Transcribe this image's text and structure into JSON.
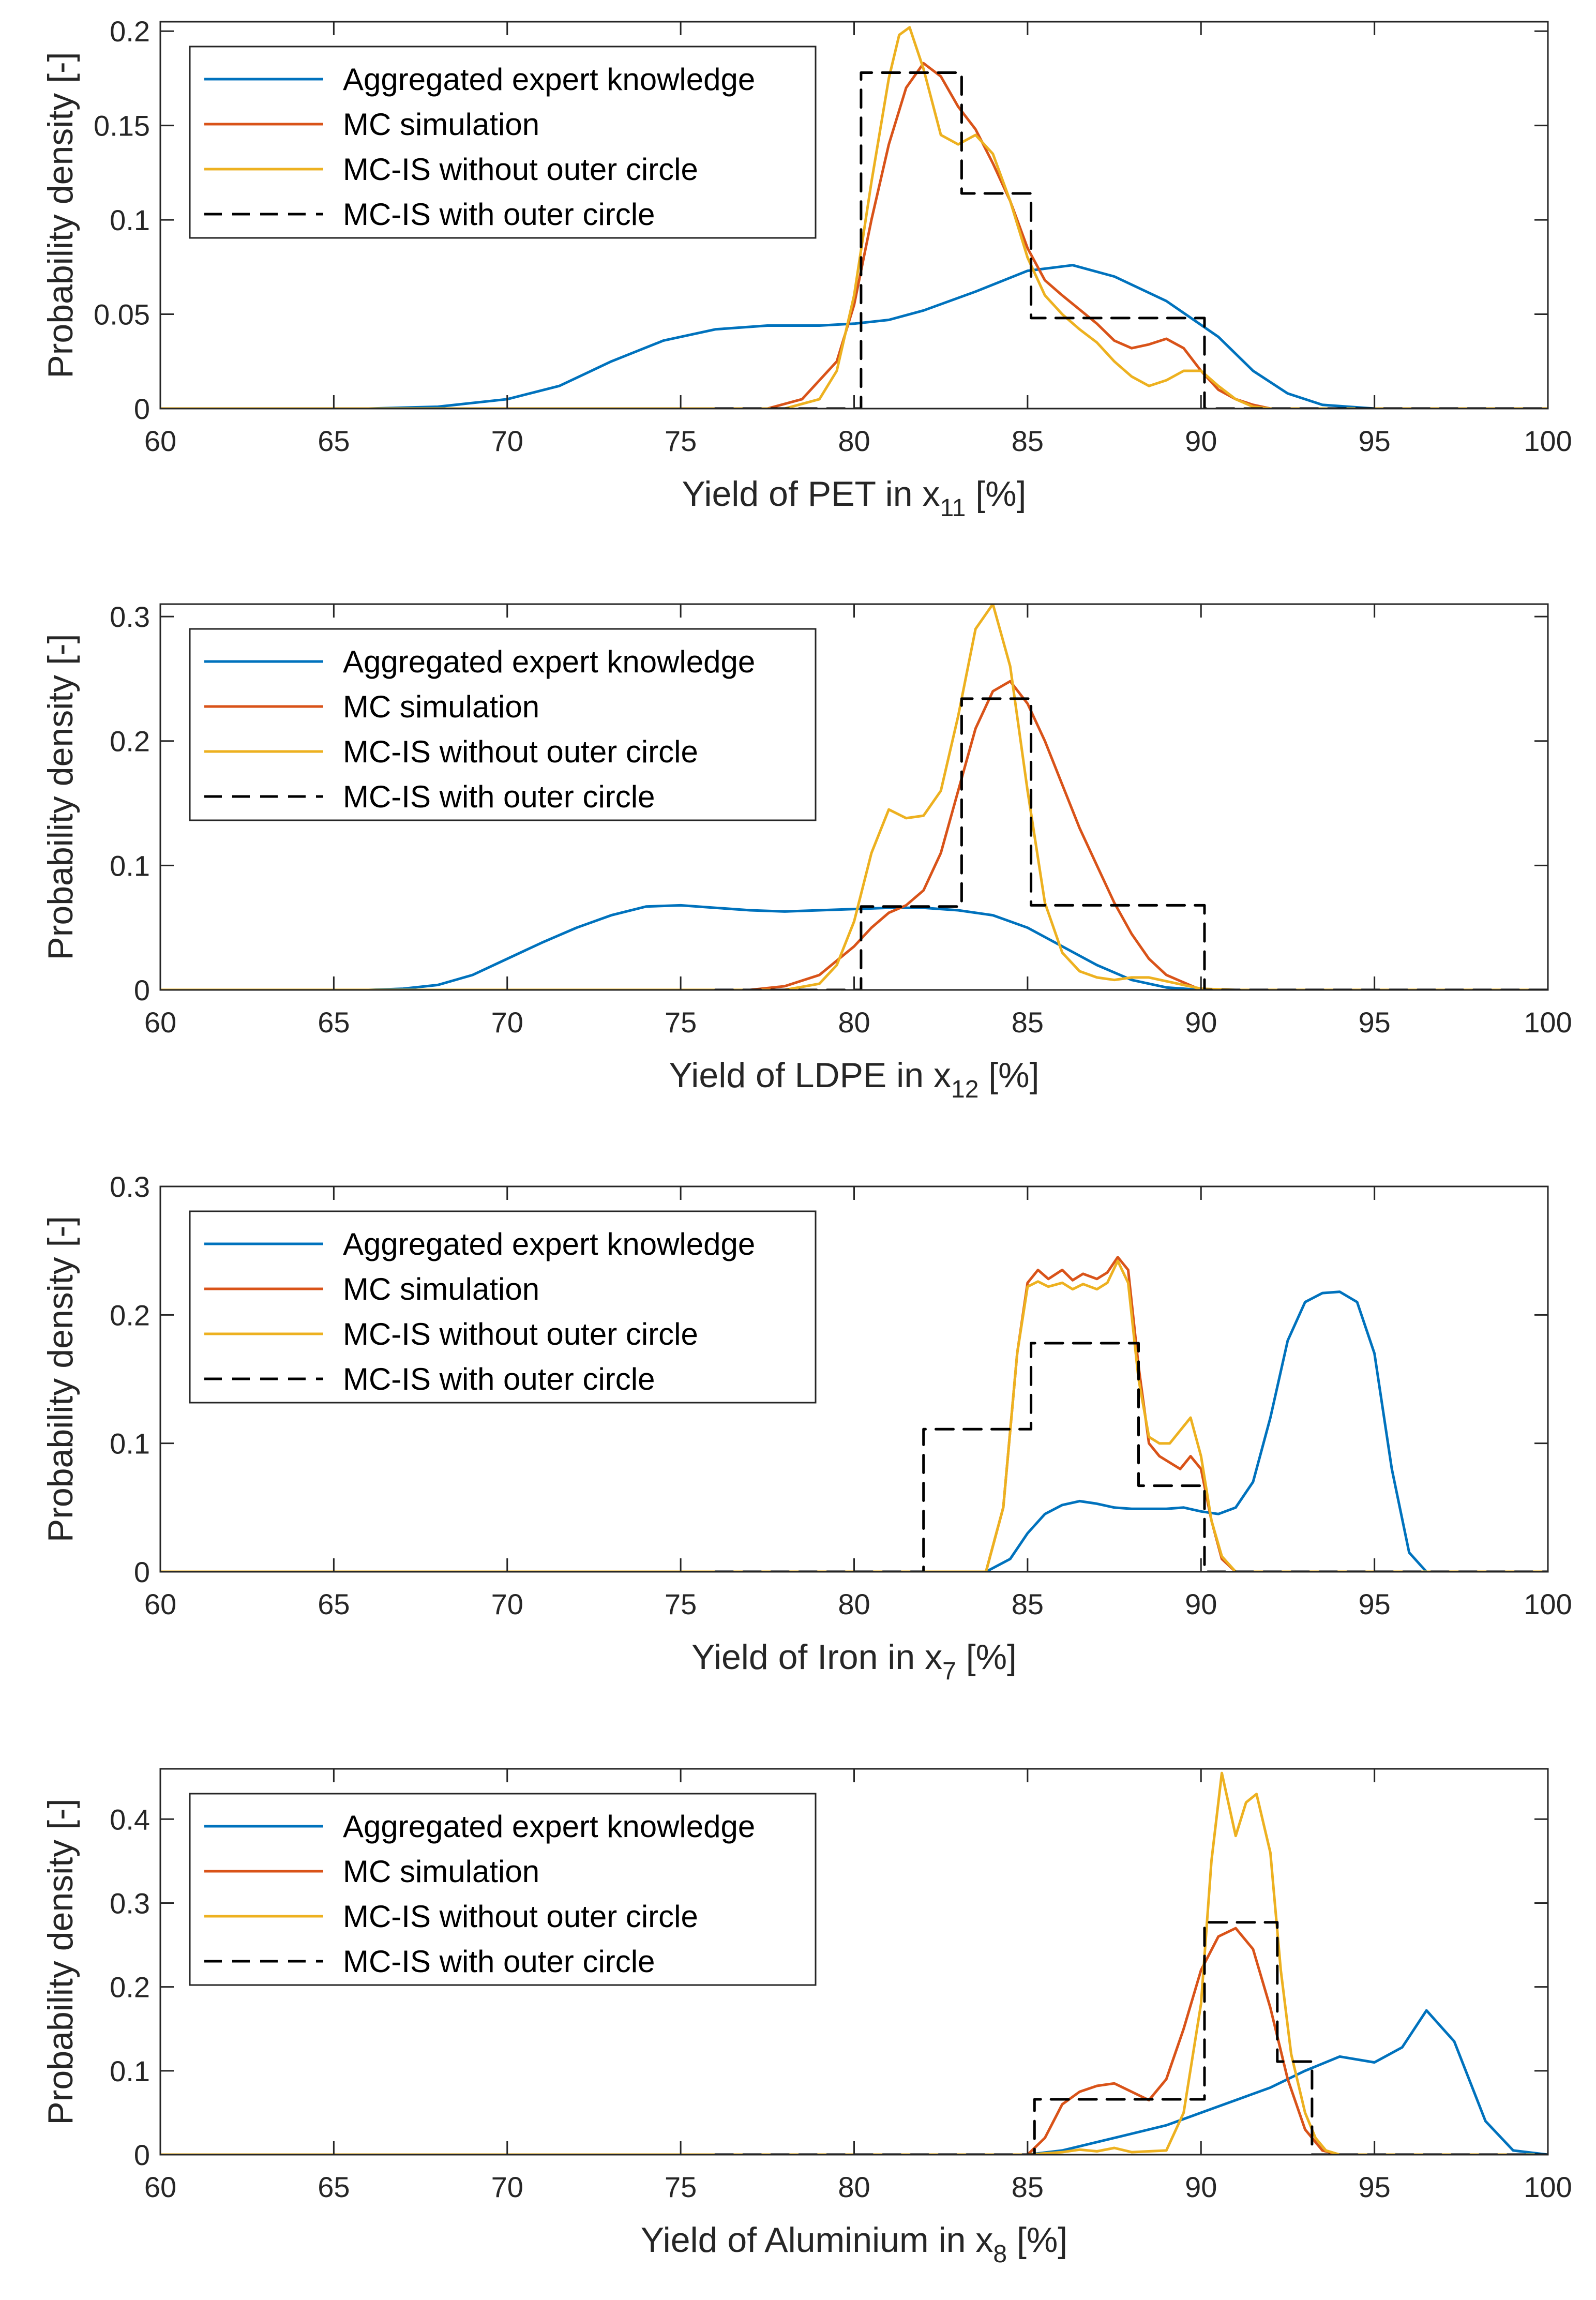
{
  "legend_entries": [
    {
      "name": "Aggregated expert knowledge",
      "color": "#0072BD",
      "dash": "solid"
    },
    {
      "name": "MC simulation",
      "color": "#D95319",
      "dash": "solid"
    },
    {
      "name": "MC-IS without outer circle",
      "color": "#EDB120",
      "dash": "solid"
    },
    {
      "name": "MC-IS with outer circle",
      "color": "#000000",
      "dash": "dashed"
    }
  ],
  "chart_data": [
    {
      "type": "line",
      "ylabel": "Probability density [-]",
      "xlabel_main": "Yield of PET in x",
      "xlabel_sub": "11",
      "xlabel_tail": " [%]",
      "xlim": [
        60,
        100
      ],
      "ylim": [
        0,
        0.205
      ],
      "xticks": [
        60,
        65,
        70,
        75,
        80,
        85,
        90,
        95,
        100
      ],
      "xtick_labels": [
        "60",
        "65",
        "70",
        "75",
        "80",
        "85",
        "90",
        "95",
        "100"
      ],
      "yticks": [
        0,
        0.05,
        0.1,
        0.15,
        0.2
      ],
      "ytick_labels": [
        "0",
        "0.05",
        "0.1",
        "0.15",
        "0.2"
      ],
      "series": [
        {
          "name": "Aggregated expert knowledge",
          "x": [
            60,
            66,
            68,
            70,
            71.5,
            73,
            74.5,
            76,
            77.5,
            79,
            80,
            81,
            82,
            83.5,
            85,
            86.3,
            87.5,
            89,
            90.5,
            91.5,
            92.5,
            93.5,
            95,
            100
          ],
          "y": [
            0,
            0,
            0.001,
            0.005,
            0.012,
            0.025,
            0.036,
            0.042,
            0.044,
            0.044,
            0.045,
            0.047,
            0.052,
            0.062,
            0.073,
            0.076,
            0.07,
            0.057,
            0.038,
            0.02,
            0.008,
            0.002,
            0,
            0
          ]
        },
        {
          "name": "MC simulation",
          "x": [
            60,
            77.5,
            78.5,
            79.5,
            80,
            80.5,
            81,
            81.5,
            82,
            82.5,
            83,
            83.5,
            84,
            84.5,
            85,
            85.5,
            86,
            87,
            87.5,
            88,
            88.5,
            89,
            89.5,
            90,
            90.5,
            91,
            91.5,
            92,
            93,
            100
          ],
          "y": [
            0,
            0,
            0.005,
            0.025,
            0.055,
            0.1,
            0.14,
            0.17,
            0.183,
            0.176,
            0.16,
            0.148,
            0.13,
            0.11,
            0.085,
            0.068,
            0.06,
            0.045,
            0.036,
            0.032,
            0.034,
            0.037,
            0.032,
            0.02,
            0.01,
            0.005,
            0.002,
            0,
            0,
            0
          ]
        },
        {
          "name": "MC-IS without outer circle",
          "x": [
            60,
            78,
            79,
            79.5,
            80,
            80.5,
            81,
            81.3,
            81.6,
            82,
            82.5,
            83,
            83.5,
            84,
            84.5,
            85,
            85.5,
            86,
            86.5,
            87,
            87.5,
            88,
            88.5,
            89,
            89.5,
            90,
            90.5,
            91,
            91.5,
            92,
            100
          ],
          "y": [
            0,
            0,
            0.005,
            0.02,
            0.06,
            0.12,
            0.175,
            0.198,
            0.202,
            0.18,
            0.145,
            0.14,
            0.145,
            0.135,
            0.11,
            0.08,
            0.06,
            0.05,
            0.042,
            0.035,
            0.025,
            0.017,
            0.012,
            0.015,
            0.02,
            0.02,
            0.012,
            0.005,
            0.001,
            0,
            0
          ]
        },
        {
          "name": "MC-IS with outer circle",
          "x": [
            76,
            80.2,
            80.2,
            83.1,
            83.1,
            85.1,
            85.1,
            90.1,
            90.1,
            100
          ],
          "y": [
            0,
            0,
            0.178,
            0.178,
            0.114,
            0.114,
            0.048,
            0.048,
            0,
            0
          ]
        }
      ]
    },
    {
      "type": "line",
      "ylabel": "Probability density [-]",
      "xlabel_main": "Yield of LDPE in x",
      "xlabel_sub": "12",
      "xlabel_tail": " [%]",
      "xlim": [
        60,
        100
      ],
      "ylim": [
        0,
        0.31
      ],
      "xticks": [
        60,
        65,
        70,
        75,
        80,
        85,
        90,
        95,
        100
      ],
      "xtick_labels": [
        "60",
        "65",
        "70",
        "75",
        "80",
        "85",
        "90",
        "95",
        "100"
      ],
      "yticks": [
        0,
        0.1,
        0.2,
        0.3
      ],
      "ytick_labels": [
        "0",
        "0.1",
        "0.2",
        "0.3"
      ],
      "series": [
        {
          "name": "Aggregated expert knowledge",
          "x": [
            60,
            66,
            67,
            68,
            69,
            70,
            71,
            72,
            73,
            74,
            75,
            76,
            77,
            78,
            79,
            80,
            81,
            82,
            83,
            84,
            85,
            86,
            87,
            88,
            89,
            90,
            100
          ],
          "y": [
            0,
            0,
            0.001,
            0.004,
            0.012,
            0.025,
            0.038,
            0.05,
            0.06,
            0.067,
            0.068,
            0.066,
            0.064,
            0.063,
            0.064,
            0.065,
            0.066,
            0.066,
            0.064,
            0.06,
            0.05,
            0.035,
            0.02,
            0.008,
            0.002,
            0,
            0
          ]
        },
        {
          "name": "MC simulation",
          "x": [
            60,
            77,
            78,
            79,
            80,
            80.5,
            81,
            81.5,
            82,
            82.5,
            83,
            83.5,
            84,
            84.5,
            85,
            85.5,
            86,
            86.5,
            87,
            87.5,
            88,
            88.5,
            89,
            90,
            100
          ],
          "y": [
            0,
            0,
            0.003,
            0.012,
            0.035,
            0.05,
            0.062,
            0.068,
            0.08,
            0.11,
            0.16,
            0.21,
            0.24,
            0.248,
            0.23,
            0.2,
            0.165,
            0.13,
            0.1,
            0.07,
            0.045,
            0.025,
            0.012,
            0,
            0
          ]
        },
        {
          "name": "MC-IS without outer circle",
          "x": [
            60,
            78,
            79,
            79.5,
            80,
            80.5,
            81,
            81.5,
            82,
            82.5,
            83,
            83.5,
            84,
            84.5,
            85,
            85.5,
            86,
            86.5,
            87,
            87.5,
            88,
            88.5,
            89,
            89.5,
            90,
            91,
            100
          ],
          "y": [
            0,
            0,
            0.005,
            0.02,
            0.055,
            0.11,
            0.145,
            0.138,
            0.14,
            0.16,
            0.22,
            0.29,
            0.31,
            0.26,
            0.16,
            0.07,
            0.03,
            0.015,
            0.01,
            0.008,
            0.01,
            0.01,
            0.007,
            0.004,
            0.001,
            0,
            0
          ]
        },
        {
          "name": "MC-IS with outer circle",
          "x": [
            76,
            80.2,
            80.2,
            83.1,
            83.1,
            85.1,
            85.1,
            90.1,
            90.1,
            100
          ],
          "y": [
            0,
            0,
            0.067,
            0.067,
            0.234,
            0.234,
            0.068,
            0.068,
            0,
            0
          ]
        }
      ]
    },
    {
      "type": "line",
      "ylabel": "Probability density [-]",
      "xlabel_main": "Yield of Iron in x",
      "xlabel_sub": "7",
      "xlabel_tail": " [%]",
      "xlim": [
        60,
        100
      ],
      "ylim": [
        0,
        0.3
      ],
      "xticks": [
        60,
        65,
        70,
        75,
        80,
        85,
        90,
        95,
        100
      ],
      "xtick_labels": [
        "60",
        "65",
        "70",
        "75",
        "80",
        "85",
        "90",
        "95",
        "100"
      ],
      "yticks": [
        0,
        0.1,
        0.2,
        0.3
      ],
      "ytick_labels": [
        "0",
        "0.1",
        "0.2",
        "0.3"
      ],
      "series": [
        {
          "name": "Aggregated expert knowledge",
          "x": [
            60,
            83.8,
            84.5,
            85,
            85.5,
            86,
            86.5,
            87,
            87.5,
            88,
            88.5,
            89,
            89.5,
            90,
            90.5,
            91,
            91.5,
            92,
            92.5,
            93,
            93.5,
            94,
            94.5,
            95,
            95.5,
            96,
            96.5,
            100
          ],
          "y": [
            0,
            0,
            0.01,
            0.03,
            0.045,
            0.052,
            0.055,
            0.053,
            0.05,
            0.049,
            0.049,
            0.049,
            0.05,
            0.047,
            0.045,
            0.05,
            0.07,
            0.12,
            0.18,
            0.21,
            0.217,
            0.218,
            0.21,
            0.17,
            0.08,
            0.015,
            0,
            0
          ]
        },
        {
          "name": "MC simulation",
          "x": [
            60,
            83.8,
            84.3,
            84.7,
            85,
            85.3,
            85.6,
            86,
            86.3,
            86.6,
            87,
            87.3,
            87.6,
            87.9,
            88.2,
            88.5,
            88.8,
            89.1,
            89.4,
            89.7,
            90,
            90.3,
            90.6,
            91,
            100
          ],
          "y": [
            0,
            0,
            0.05,
            0.17,
            0.225,
            0.235,
            0.228,
            0.235,
            0.227,
            0.232,
            0.228,
            0.233,
            0.245,
            0.235,
            0.16,
            0.1,
            0.09,
            0.085,
            0.08,
            0.09,
            0.08,
            0.04,
            0.01,
            0,
            0
          ]
        },
        {
          "name": "MC-IS without outer circle",
          "x": [
            60,
            83.8,
            84.3,
            84.7,
            85,
            85.3,
            85.6,
            86,
            86.3,
            86.6,
            87,
            87.3,
            87.6,
            87.9,
            88.2,
            88.5,
            88.8,
            89.1,
            89.4,
            89.7,
            90,
            90.3,
            90.6,
            91,
            100
          ],
          "y": [
            0,
            0,
            0.05,
            0.17,
            0.222,
            0.226,
            0.222,
            0.225,
            0.22,
            0.224,
            0.22,
            0.225,
            0.242,
            0.225,
            0.15,
            0.105,
            0.1,
            0.1,
            0.11,
            0.12,
            0.09,
            0.04,
            0.012,
            0,
            0
          ]
        },
        {
          "name": "MC-IS with outer circle",
          "x": [
            76,
            82,
            82,
            85.1,
            85.1,
            88.2,
            88.2,
            90.1,
            90.1,
            100
          ],
          "y": [
            0,
            0,
            0.111,
            0.111,
            0.178,
            0.178,
            0.067,
            0.067,
            0,
            0
          ]
        }
      ]
    },
    {
      "type": "line",
      "ylabel": "Probability density [-]",
      "xlabel_main": "Yield of Aluminium in x",
      "xlabel_sub": "8",
      "xlabel_tail": " [%]",
      "xlim": [
        60,
        100
      ],
      "ylim": [
        0,
        0.46
      ],
      "xticks": [
        60,
        65,
        70,
        75,
        80,
        85,
        90,
        95,
        100
      ],
      "xtick_labels": [
        "60",
        "65",
        "70",
        "75",
        "80",
        "85",
        "90",
        "95",
        "100"
      ],
      "yticks": [
        0,
        0.1,
        0.2,
        0.3,
        0.4
      ],
      "ytick_labels": [
        "0",
        "0.1",
        "0.2",
        "0.3",
        "0.4"
      ],
      "series": [
        {
          "name": "Aggregated expert knowledge",
          "x": [
            60,
            85,
            86,
            87,
            88,
            89,
            90,
            91,
            92,
            93,
            94,
            95,
            95.8,
            96.5,
            97.3,
            98.2,
            99,
            100
          ],
          "y": [
            0,
            0,
            0.005,
            0.015,
            0.025,
            0.035,
            0.05,
            0.065,
            0.08,
            0.1,
            0.117,
            0.11,
            0.128,
            0.172,
            0.135,
            0.04,
            0.005,
            0
          ]
        },
        {
          "name": "MC simulation",
          "x": [
            60,
            85,
            85.5,
            86,
            86.5,
            87,
            87.5,
            88,
            88.5,
            89,
            89.5,
            90,
            90.5,
            91,
            91.5,
            92,
            92.5,
            93,
            93.5,
            94,
            100
          ],
          "y": [
            0,
            0,
            0.02,
            0.06,
            0.075,
            0.082,
            0.085,
            0.075,
            0.065,
            0.09,
            0.15,
            0.22,
            0.26,
            0.27,
            0.245,
            0.175,
            0.09,
            0.03,
            0.005,
            0,
            0
          ]
        },
        {
          "name": "MC-IS without outer circle",
          "x": [
            60,
            85,
            86,
            86.5,
            87,
            87.5,
            88,
            89,
            89.5,
            90,
            90.3,
            90.6,
            91,
            91.3,
            91.6,
            92,
            92.3,
            92.6,
            93,
            93.3,
            93.6,
            94,
            100
          ],
          "y": [
            0,
            0,
            0.003,
            0.006,
            0.004,
            0.008,
            0.003,
            0.005,
            0.05,
            0.18,
            0.35,
            0.455,
            0.38,
            0.42,
            0.43,
            0.36,
            0.22,
            0.12,
            0.05,
            0.02,
            0.005,
            0,
            0
          ]
        },
        {
          "name": "MC-IS with outer circle",
          "x": [
            76,
            85.2,
            85.2,
            90.1,
            90.1,
            92.2,
            92.2,
            93.2,
            93.2,
            100
          ],
          "y": [
            0,
            0,
            0.066,
            0.066,
            0.277,
            0.277,
            0.111,
            0.111,
            0,
            0
          ]
        }
      ]
    }
  ]
}
